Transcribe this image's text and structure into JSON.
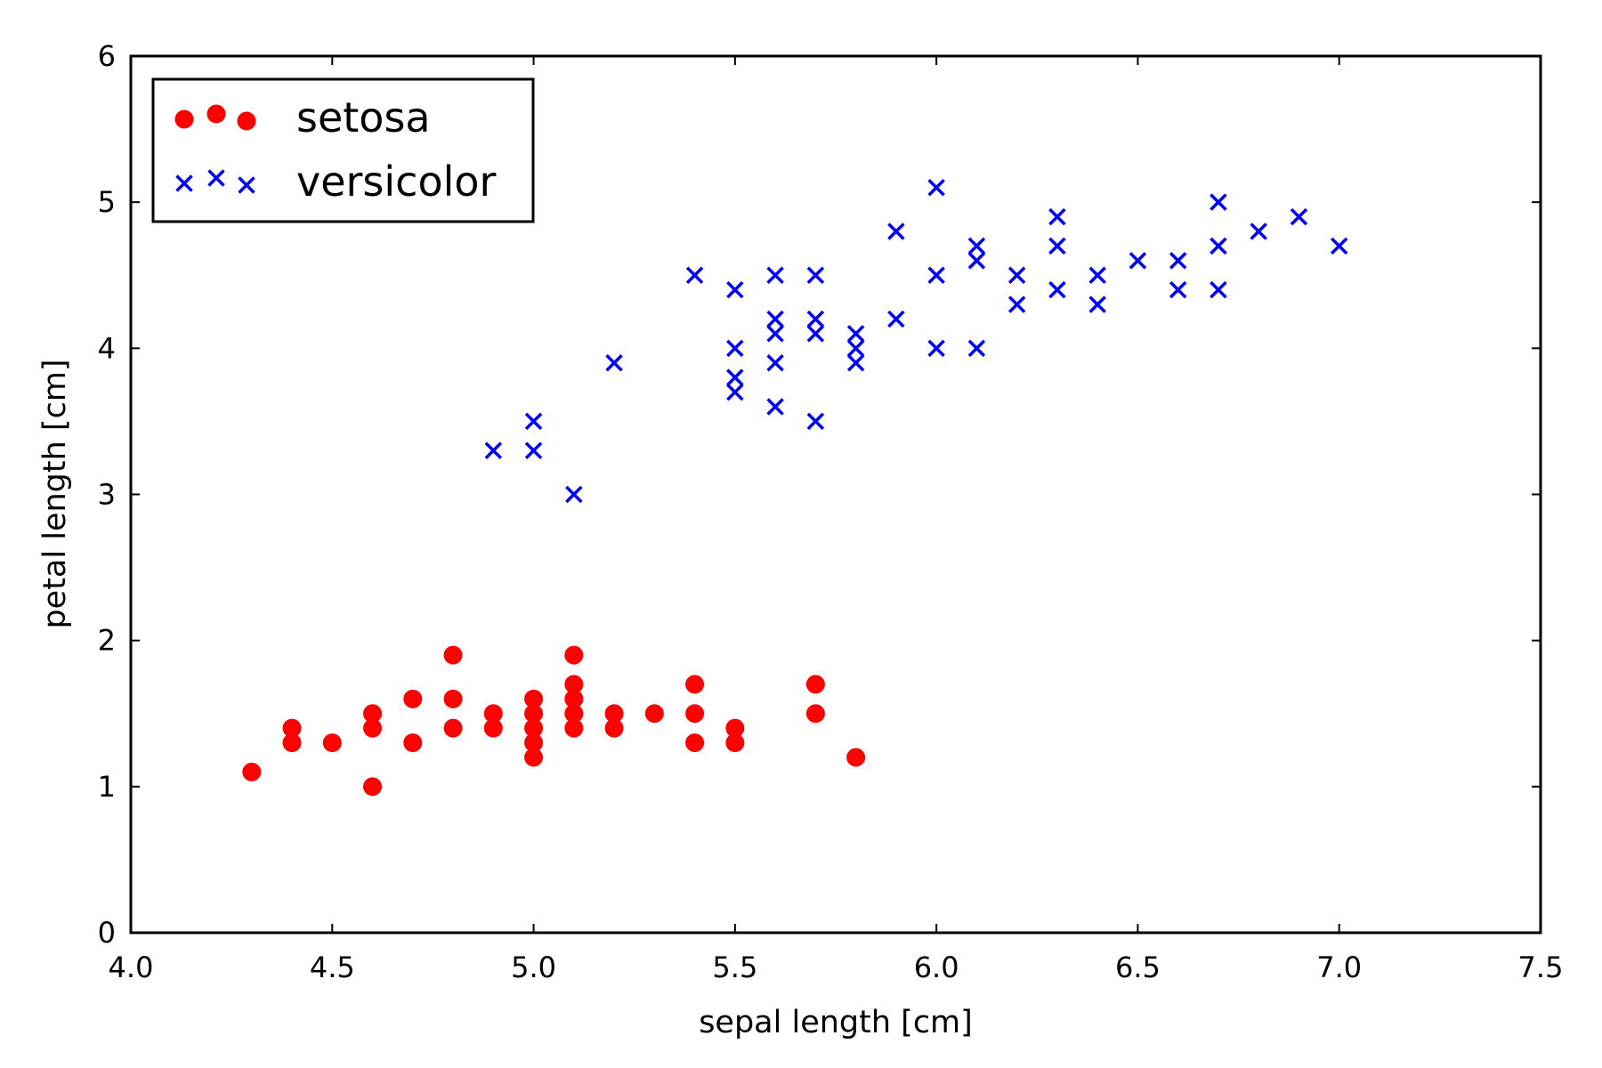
{
  "chart_data": {
    "type": "scatter",
    "title": "",
    "xlabel": "sepal length [cm]",
    "ylabel": "petal length [cm]",
    "xlim": [
      4.0,
      7.5
    ],
    "ylim": [
      0,
      6
    ],
    "x_ticks": [
      4.0,
      4.5,
      5.0,
      5.5,
      6.0,
      6.5,
      7.0,
      7.5
    ],
    "x_tick_labels": [
      "4.0",
      "4.5",
      "5.0",
      "5.5",
      "6.0",
      "6.5",
      "7.0",
      "7.5"
    ],
    "y_ticks": [
      0,
      1,
      2,
      3,
      4,
      5,
      6
    ],
    "y_tick_labels": [
      "0",
      "1",
      "2",
      "3",
      "4",
      "5",
      "6"
    ],
    "grid": false,
    "legend_position": "top-left",
    "series": [
      {
        "name": "setosa",
        "marker": "circle",
        "color": "#ff0000",
        "points": [
          [
            4.3,
            1.1
          ],
          [
            4.4,
            1.3
          ],
          [
            4.4,
            1.4
          ],
          [
            4.5,
            1.3
          ],
          [
            4.6,
            1.0
          ],
          [
            4.6,
            1.4
          ],
          [
            4.6,
            1.5
          ],
          [
            4.7,
            1.3
          ],
          [
            4.7,
            1.6
          ],
          [
            4.8,
            1.4
          ],
          [
            4.8,
            1.6
          ],
          [
            4.8,
            1.9
          ],
          [
            4.9,
            1.4
          ],
          [
            4.9,
            1.5
          ],
          [
            5.0,
            1.2
          ],
          [
            5.0,
            1.3
          ],
          [
            5.0,
            1.4
          ],
          [
            5.0,
            1.5
          ],
          [
            5.0,
            1.6
          ],
          [
            5.1,
            1.4
          ],
          [
            5.1,
            1.5
          ],
          [
            5.1,
            1.6
          ],
          [
            5.1,
            1.7
          ],
          [
            5.1,
            1.9
          ],
          [
            5.2,
            1.4
          ],
          [
            5.2,
            1.5
          ],
          [
            5.3,
            1.5
          ],
          [
            5.4,
            1.3
          ],
          [
            5.4,
            1.5
          ],
          [
            5.4,
            1.7
          ],
          [
            5.5,
            1.3
          ],
          [
            5.5,
            1.4
          ],
          [
            5.7,
            1.5
          ],
          [
            5.7,
            1.7
          ],
          [
            5.8,
            1.2
          ]
        ]
      },
      {
        "name": "versicolor",
        "marker": "x",
        "color": "#0000ff",
        "points": [
          [
            4.9,
            3.3
          ],
          [
            5.0,
            3.3
          ],
          [
            5.0,
            3.5
          ],
          [
            5.1,
            3.0
          ],
          [
            5.2,
            3.9
          ],
          [
            5.4,
            4.5
          ],
          [
            5.5,
            3.7
          ],
          [
            5.5,
            3.8
          ],
          [
            5.5,
            4.0
          ],
          [
            5.5,
            4.4
          ],
          [
            5.6,
            3.6
          ],
          [
            5.6,
            3.9
          ],
          [
            5.6,
            4.1
          ],
          [
            5.6,
            4.2
          ],
          [
            5.6,
            4.5
          ],
          [
            5.7,
            3.5
          ],
          [
            5.7,
            4.1
          ],
          [
            5.7,
            4.2
          ],
          [
            5.7,
            4.5
          ],
          [
            5.8,
            3.9
          ],
          [
            5.8,
            4.0
          ],
          [
            5.8,
            4.1
          ],
          [
            5.9,
            4.2
          ],
          [
            5.9,
            4.8
          ],
          [
            6.0,
            4.0
          ],
          [
            6.0,
            4.5
          ],
          [
            6.0,
            5.1
          ],
          [
            6.1,
            4.0
          ],
          [
            6.1,
            4.6
          ],
          [
            6.1,
            4.7
          ],
          [
            6.2,
            4.3
          ],
          [
            6.2,
            4.5
          ],
          [
            6.3,
            4.4
          ],
          [
            6.3,
            4.7
          ],
          [
            6.3,
            4.9
          ],
          [
            6.4,
            4.3
          ],
          [
            6.4,
            4.5
          ],
          [
            6.5,
            4.6
          ],
          [
            6.6,
            4.4
          ],
          [
            6.6,
            4.6
          ],
          [
            6.7,
            4.4
          ],
          [
            6.7,
            4.7
          ],
          [
            6.7,
            5.0
          ],
          [
            6.8,
            4.8
          ],
          [
            6.9,
            4.9
          ],
          [
            7.0,
            4.7
          ]
        ]
      }
    ]
  }
}
